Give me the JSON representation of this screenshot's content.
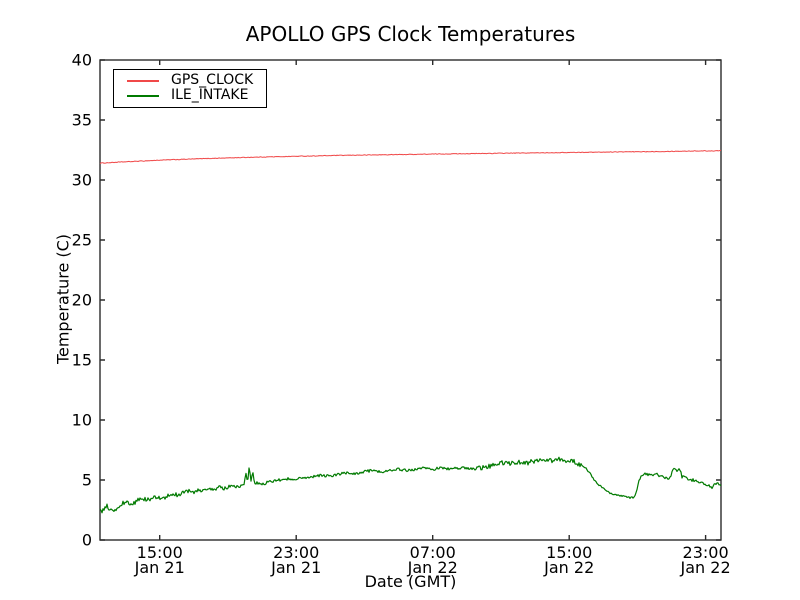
{
  "figure": {
    "background": "#ffffff"
  },
  "chart_data": {
    "type": "line",
    "title": "APOLLO GPS Clock Temperatures",
    "xlabel": "Date (GMT)",
    "ylabel": "Temperature (C)",
    "ylim": [
      0,
      40
    ],
    "yticks": [
      0,
      5,
      10,
      15,
      20,
      25,
      30,
      35,
      40
    ],
    "x_hours_range": [
      0,
      36.4
    ],
    "xticks": [
      {
        "t": 3.5,
        "time": "15:00",
        "date": "Jan 21"
      },
      {
        "t": 11.5,
        "time": "23:00",
        "date": "Jan 21"
      },
      {
        "t": 19.5,
        "time": "07:00",
        "date": "Jan 22"
      },
      {
        "t": 27.5,
        "time": "15:00",
        "date": "Jan 22"
      },
      {
        "t": 35.5,
        "time": "23:00",
        "date": "Jan 22"
      }
    ],
    "grid": false,
    "axis_color": "#2b2b2b",
    "legend": {
      "position": "upper-left",
      "entries": [
        "GPS_CLOCK",
        "ILE_INTAKE"
      ]
    },
    "series": [
      {
        "name": "GPS_CLOCK",
        "color": "#f04848",
        "width": 1.0,
        "noise_amplitude": 0.025,
        "points": [
          [
            0,
            31.4
          ],
          [
            1,
            31.48
          ],
          [
            2,
            31.55
          ],
          [
            3,
            31.62
          ],
          [
            4,
            31.68
          ],
          [
            5,
            31.73
          ],
          [
            6,
            31.78
          ],
          [
            7,
            31.82
          ],
          [
            8,
            31.86
          ],
          [
            9,
            31.9
          ],
          [
            10,
            31.93
          ],
          [
            11,
            31.96
          ],
          [
            12,
            31.99
          ],
          [
            13,
            32.02
          ],
          [
            14,
            32.05
          ],
          [
            15,
            32.07
          ],
          [
            16,
            32.09
          ],
          [
            17,
            32.11
          ],
          [
            18,
            32.13
          ],
          [
            19,
            32.15
          ],
          [
            20,
            32.17
          ],
          [
            21,
            32.19
          ],
          [
            22,
            32.2
          ],
          [
            23,
            32.22
          ],
          [
            24,
            32.24
          ],
          [
            25,
            32.25
          ],
          [
            26,
            32.27
          ],
          [
            27,
            32.28
          ],
          [
            28,
            32.3
          ],
          [
            29,
            32.32
          ],
          [
            30,
            32.33
          ],
          [
            31,
            32.35
          ],
          [
            32,
            32.36
          ],
          [
            33,
            32.38
          ],
          [
            34,
            32.4
          ],
          [
            35,
            32.42
          ],
          [
            36,
            32.43
          ],
          [
            36.4,
            32.45
          ]
        ]
      },
      {
        "name": "ILE_INTAKE",
        "color": "#007a00",
        "width": 1.2,
        "noise_amplitude": 0.13,
        "noise_regions": [
          {
            "from": 0,
            "to": 3,
            "amp": 0.22
          },
          {
            "from": 3,
            "to": 8.3,
            "amp": 0.15
          },
          {
            "from": 9.2,
            "to": 22,
            "amp": 0.11
          },
          {
            "from": 22,
            "to": 28.2,
            "amp": 0.2
          },
          {
            "from": 28.2,
            "to": 31.4,
            "amp": 0.07
          },
          {
            "from": 31.4,
            "to": 36.4,
            "amp": 0.13
          }
        ],
        "points": [
          [
            0,
            2.6
          ],
          [
            0.2,
            2.4
          ],
          [
            0.4,
            2.8
          ],
          [
            0.6,
            2.5
          ],
          [
            0.8,
            2.3
          ],
          [
            1.0,
            2.6
          ],
          [
            1.3,
            3.0
          ],
          [
            1.6,
            3.2
          ],
          [
            1.9,
            3.0
          ],
          [
            2.2,
            3.3
          ],
          [
            2.5,
            3.5
          ],
          [
            2.8,
            3.3
          ],
          [
            3.1,
            3.5
          ],
          [
            3.4,
            3.6
          ],
          [
            3.7,
            3.4
          ],
          [
            4.0,
            3.7
          ],
          [
            4.3,
            3.9
          ],
          [
            4.6,
            3.7
          ],
          [
            4.9,
            4.0
          ],
          [
            5.2,
            4.1
          ],
          [
            5.5,
            3.9
          ],
          [
            5.8,
            4.2
          ],
          [
            6.1,
            4.1
          ],
          [
            6.4,
            4.3
          ],
          [
            6.7,
            4.2
          ],
          [
            7.0,
            4.4
          ],
          [
            7.3,
            4.3
          ],
          [
            7.6,
            4.5
          ],
          [
            7.9,
            4.4
          ],
          [
            8.2,
            4.5
          ],
          [
            8.45,
            4.6
          ],
          [
            8.55,
            5.6
          ],
          [
            8.65,
            4.7
          ],
          [
            8.75,
            6.3
          ],
          [
            8.85,
            4.9
          ],
          [
            8.95,
            5.9
          ],
          [
            9.05,
            4.6
          ],
          [
            9.2,
            4.8
          ],
          [
            9.5,
            4.6
          ],
          [
            9.8,
            4.8
          ],
          [
            10.1,
            4.9
          ],
          [
            10.5,
            5.0
          ],
          [
            11.0,
            5.1
          ],
          [
            11.5,
            5.1
          ],
          [
            12.0,
            5.2
          ],
          [
            12.5,
            5.3
          ],
          [
            13.0,
            5.4
          ],
          [
            13.5,
            5.3
          ],
          [
            14.0,
            5.5
          ],
          [
            14.5,
            5.6
          ],
          [
            15.0,
            5.5
          ],
          [
            15.5,
            5.7
          ],
          [
            16.0,
            5.8
          ],
          [
            16.5,
            5.7
          ],
          [
            17.0,
            5.8
          ],
          [
            17.5,
            5.9
          ],
          [
            18.0,
            5.8
          ],
          [
            18.5,
            5.9
          ],
          [
            19.0,
            6.0
          ],
          [
            19.5,
            5.9
          ],
          [
            20.0,
            6.0
          ],
          [
            20.5,
            5.9
          ],
          [
            21.0,
            6.0
          ],
          [
            21.5,
            6.0
          ],
          [
            22.0,
            5.9
          ],
          [
            22.5,
            6.1
          ],
          [
            23.0,
            6.2
          ],
          [
            23.5,
            6.4
          ],
          [
            24.0,
            6.4
          ],
          [
            24.5,
            6.5
          ],
          [
            25.0,
            6.4
          ],
          [
            25.5,
            6.6
          ],
          [
            26.0,
            6.7
          ],
          [
            26.5,
            6.6
          ],
          [
            26.8,
            6.8
          ],
          [
            27.1,
            6.6
          ],
          [
            27.5,
            6.7
          ],
          [
            27.8,
            6.5
          ],
          [
            28.1,
            6.3
          ],
          [
            28.4,
            6.1
          ],
          [
            28.7,
            5.6
          ],
          [
            29.0,
            4.9
          ],
          [
            29.3,
            4.5
          ],
          [
            29.6,
            4.2
          ],
          [
            29.9,
            3.9
          ],
          [
            30.2,
            3.8
          ],
          [
            30.5,
            3.7
          ],
          [
            30.8,
            3.6
          ],
          [
            31.1,
            3.5
          ],
          [
            31.35,
            3.6
          ],
          [
            31.5,
            4.4
          ],
          [
            31.7,
            5.4
          ],
          [
            32.0,
            5.5
          ],
          [
            32.3,
            5.4
          ],
          [
            32.6,
            5.5
          ],
          [
            32.9,
            5.3
          ],
          [
            33.2,
            5.1
          ],
          [
            33.45,
            5.2
          ],
          [
            33.55,
            5.9
          ],
          [
            33.8,
            5.8
          ],
          [
            34.0,
            5.9
          ],
          [
            34.1,
            5.3
          ],
          [
            34.4,
            5.1
          ],
          [
            34.7,
            5.0
          ],
          [
            35.0,
            4.9
          ],
          [
            35.3,
            4.7
          ],
          [
            35.6,
            4.5
          ],
          [
            35.9,
            4.4
          ],
          [
            36.1,
            4.7
          ],
          [
            36.4,
            4.6
          ]
        ]
      }
    ]
  }
}
